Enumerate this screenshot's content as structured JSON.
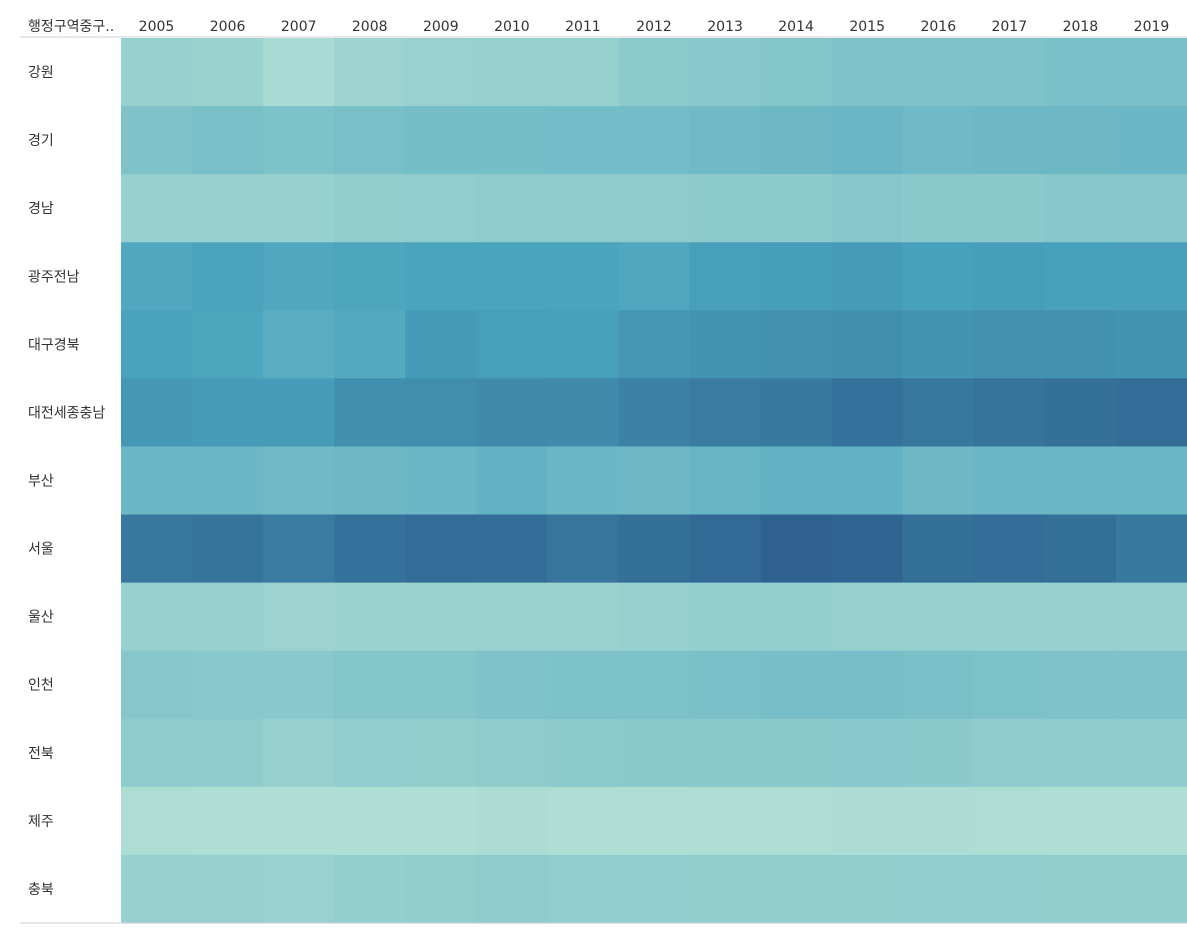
{
  "chart_data": {
    "type": "heatmap",
    "header_label": "행정구역중구..",
    "columns": [
      "2005",
      "2006",
      "2007",
      "2008",
      "2009",
      "2010",
      "2011",
      "2012",
      "2013",
      "2014",
      "2015",
      "2016",
      "2017",
      "2018",
      "2019"
    ],
    "rows": [
      "강원",
      "경기",
      "경남",
      "광주전남",
      "대구경북",
      "대전세종충남",
      "부산",
      "서울",
      "울산",
      "인천",
      "전북",
      "제주",
      "충북"
    ],
    "values": [
      [
        0.2,
        0.18,
        0.1,
        0.17,
        0.19,
        0.2,
        0.2,
        0.25,
        0.27,
        0.3,
        0.32,
        0.32,
        0.32,
        0.34,
        0.34
      ],
      [
        0.32,
        0.35,
        0.33,
        0.35,
        0.37,
        0.37,
        0.38,
        0.38,
        0.4,
        0.41,
        0.43,
        0.4,
        0.41,
        0.41,
        0.42
      ],
      [
        0.2,
        0.2,
        0.2,
        0.22,
        0.23,
        0.24,
        0.24,
        0.24,
        0.25,
        0.25,
        0.28,
        0.26,
        0.26,
        0.28,
        0.28
      ],
      [
        0.56,
        0.59,
        0.56,
        0.58,
        0.59,
        0.59,
        0.59,
        0.56,
        0.62,
        0.63,
        0.64,
        0.61,
        0.63,
        0.61,
        0.62
      ],
      [
        0.6,
        0.58,
        0.51,
        0.55,
        0.65,
        0.62,
        0.61,
        0.66,
        0.68,
        0.7,
        0.71,
        0.68,
        0.7,
        0.7,
        0.68
      ],
      [
        0.66,
        0.64,
        0.64,
        0.71,
        0.72,
        0.74,
        0.73,
        0.78,
        0.82,
        0.83,
        0.87,
        0.84,
        0.86,
        0.88,
        0.89
      ],
      [
        0.42,
        0.42,
        0.4,
        0.41,
        0.42,
        0.47,
        0.42,
        0.41,
        0.45,
        0.47,
        0.47,
        0.41,
        0.43,
        0.43,
        0.43
      ],
      [
        0.84,
        0.86,
        0.82,
        0.87,
        0.9,
        0.89,
        0.85,
        0.88,
        0.91,
        0.96,
        0.94,
        0.88,
        0.89,
        0.88,
        0.83
      ],
      [
        0.2,
        0.2,
        0.17,
        0.18,
        0.18,
        0.18,
        0.18,
        0.2,
        0.21,
        0.21,
        0.2,
        0.2,
        0.2,
        0.2,
        0.2
      ],
      [
        0.28,
        0.27,
        0.27,
        0.29,
        0.29,
        0.32,
        0.33,
        0.33,
        0.34,
        0.36,
        0.36,
        0.34,
        0.33,
        0.32,
        0.32
      ],
      [
        0.24,
        0.24,
        0.2,
        0.23,
        0.22,
        0.24,
        0.25,
        0.26,
        0.26,
        0.26,
        0.27,
        0.26,
        0.24,
        0.24,
        0.24
      ],
      [
        0.08,
        0.07,
        0.07,
        0.07,
        0.07,
        0.09,
        0.07,
        0.07,
        0.08,
        0.08,
        0.09,
        0.09,
        0.08,
        0.07,
        0.07
      ],
      [
        0.2,
        0.2,
        0.19,
        0.21,
        0.22,
        0.24,
        0.23,
        0.23,
        0.22,
        0.22,
        0.22,
        0.23,
        0.23,
        0.22,
        0.22
      ]
    ],
    "color_scale": {
      "low": "#bde6d8",
      "mid": "#49a3bd",
      "high": "#2c5a8a"
    },
    "legend": "none",
    "grid": false
  }
}
